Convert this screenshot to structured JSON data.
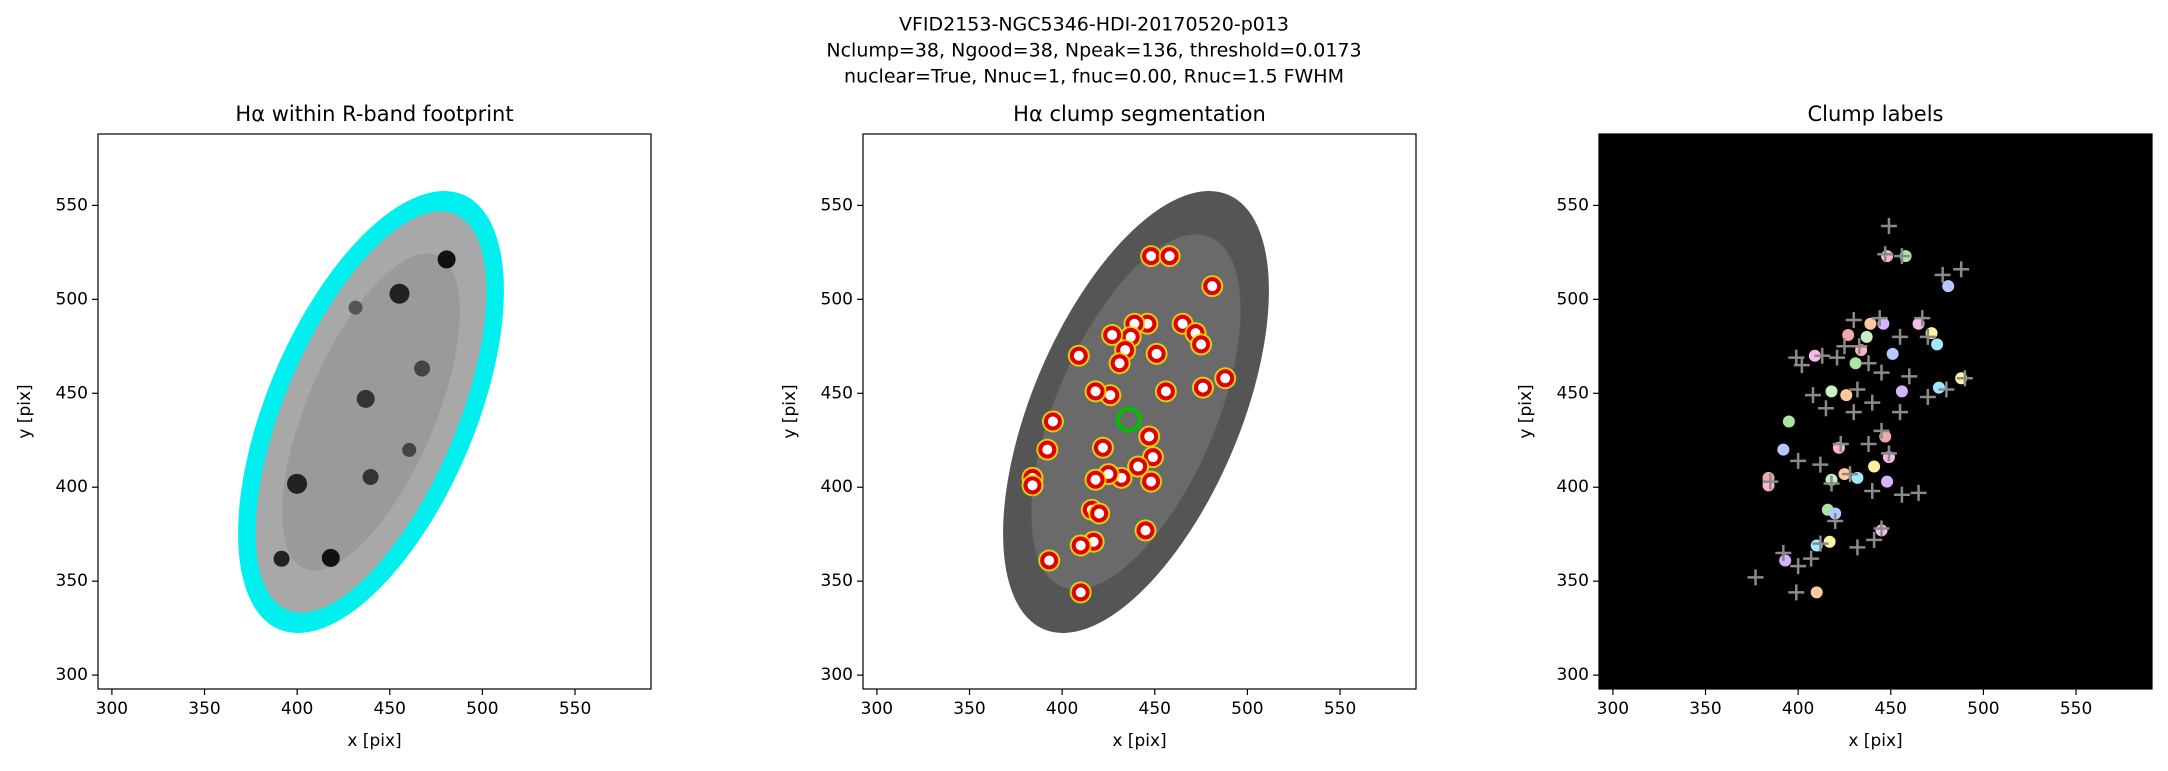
{
  "figure": {
    "title": [
      "VFID2153-NGC5346-HDI-20170520-p013",
      "Nclump=38, Ngood=38, Npeak=136, threshold=0.0173",
      "nuclear=True, Nnuc=1, fnuc=0.00, Rnuc=1.5 FWHM"
    ]
  },
  "chart_data": [
    {
      "type": "image",
      "title": "Hα within R-band footprint",
      "x_label": "x [pix]",
      "y_label": "y [pix]",
      "xlim": [
        292.5,
        591
      ],
      "ylim": [
        292.6,
        588
      ],
      "xticks": [
        300,
        350,
        400,
        450,
        500,
        550
      ],
      "yticks": [
        300,
        350,
        400,
        450,
        500,
        550
      ],
      "background": "#ffffff",
      "series": []
    },
    {
      "type": "image",
      "title": "Hα clump segmentation",
      "x_label": "x [pix]",
      "y_label": "y [pix]",
      "xlim": [
        292.5,
        591
      ],
      "ylim": [
        292.6,
        588
      ],
      "xticks": [
        300,
        350,
        400,
        450,
        500,
        550
      ],
      "yticks": [
        300,
        350,
        400,
        450,
        500,
        550
      ],
      "background": "#ffffff",
      "series": [
        {
          "marker": "ring",
          "color": "#e00000",
          "x": [
            448,
            458,
            481,
            465,
            472,
            475,
            446,
            439,
            437,
            427,
            434,
            431,
            451,
            409,
            488,
            476,
            456,
            426,
            418,
            447,
            422,
            395,
            392,
            449,
            441,
            432,
            448,
            425,
            418,
            384,
            384,
            416,
            420,
            445,
            417,
            410,
            393,
            410
          ],
          "values": [
            523,
            523,
            507,
            487,
            482,
            476,
            487,
            487,
            480,
            481,
            473,
            466,
            471,
            470,
            458,
            453,
            451,
            449,
            451,
            427,
            421,
            435,
            420,
            416,
            411,
            405,
            403,
            407,
            404,
            405,
            401,
            388,
            386,
            377,
            371,
            369,
            361,
            344
          ]
        },
        {
          "marker": "nucleus",
          "color": "#00c000",
          "x": [
            436
          ],
          "values": [
            436
          ]
        }
      ]
    },
    {
      "type": "image",
      "title": "Clump labels",
      "x_label": "x [pix]",
      "y_label": "y [pix]",
      "xlim": [
        292.5,
        591
      ],
      "ylim": [
        292.6,
        588
      ],
      "xticks": [
        300,
        350,
        400,
        450,
        500,
        550
      ],
      "yticks": [
        300,
        350,
        400,
        450,
        500,
        550
      ],
      "background": "#000000",
      "series": [
        {
          "marker": "blob",
          "palette": [
            "#ffb3c6",
            "#a8e6a1",
            "#b5c8ff",
            "#f7b9e8",
            "#fff3a0",
            "#a0e8ff",
            "#d6b3ff",
            "#ffc9a0",
            "#c8f0c0",
            "#f0a8a8"
          ],
          "x": [
            448,
            458,
            481,
            465,
            472,
            475,
            446,
            439,
            437,
            427,
            434,
            431,
            451,
            409,
            488,
            476,
            456,
            426,
            418,
            447,
            422,
            395,
            392,
            449,
            441,
            432,
            448,
            425,
            418,
            384,
            384,
            416,
            420,
            445,
            417,
            410,
            393,
            410
          ],
          "values": [
            523,
            523,
            507,
            487,
            482,
            476,
            487,
            487,
            480,
            481,
            473,
            466,
            471,
            470,
            458,
            453,
            451,
            449,
            451,
            427,
            421,
            435,
            420,
            416,
            411,
            405,
            403,
            407,
            404,
            405,
            401,
            388,
            386,
            377,
            371,
            369,
            361,
            344
          ]
        },
        {
          "marker": "plus",
          "color": "#8a8a8a",
          "x": [
            449,
            447,
            456,
            488,
            478,
            467,
            470,
            444,
            430,
            455,
            433,
            425,
            413,
            402,
            399,
            421,
            438,
            445,
            460,
            490,
            480,
            470,
            432,
            440,
            430,
            415,
            408,
            455,
            445,
            438,
            423,
            449,
            412,
            400,
            428,
            418,
            440,
            456,
            465,
            420,
            445,
            432,
            441,
            412,
            407,
            400,
            392,
            399,
            377,
            385
          ],
          "values": [
            539,
            524,
            523,
            516,
            513,
            490,
            480,
            490,
            489,
            480,
            475,
            475,
            470,
            465,
            469,
            469,
            466,
            461,
            459,
            458,
            452,
            448,
            452,
            445,
            440,
            442,
            449,
            440,
            430,
            423,
            423,
            418,
            412,
            414,
            407,
            402,
            398,
            396,
            397,
            382,
            378,
            368,
            372,
            370,
            362,
            358,
            365,
            344,
            352,
            403
          ]
        }
      ]
    }
  ]
}
